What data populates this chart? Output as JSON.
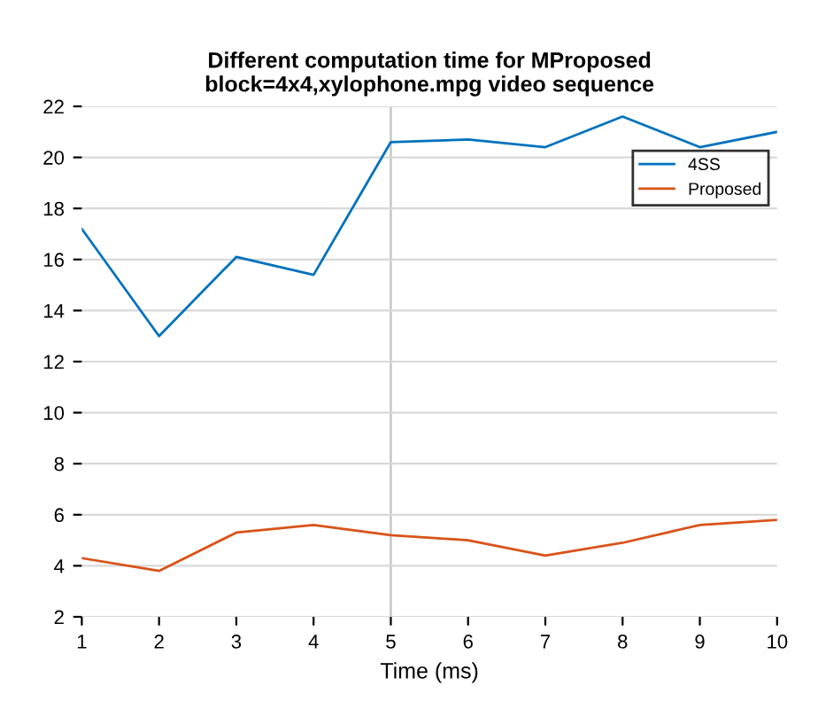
{
  "chart_data": {
    "type": "line",
    "title": "Different computation time for MProposed\nblock=4x4,xylophone.mpg video sequence",
    "xlabel": "Time (ms)",
    "x": [
      1,
      2,
      3,
      4,
      5,
      6,
      7,
      8,
      9,
      10
    ],
    "series": [
      {
        "name": "4SS",
        "color": "#0072bd",
        "values": [
          17.2,
          13.0,
          16.1,
          15.4,
          20.6,
          20.7,
          20.4,
          21.6,
          20.4,
          21.0
        ]
      },
      {
        "name": "Proposed",
        "color": "#d95319",
        "values": [
          4.3,
          3.8,
          5.3,
          5.6,
          5.2,
          5.0,
          4.4,
          4.9,
          5.6,
          5.8
        ]
      }
    ],
    "xlim": [
      1,
      10
    ],
    "xticks": [
      1,
      2,
      3,
      4,
      5,
      6,
      7,
      8,
      9,
      10
    ],
    "ylim": [
      2,
      22
    ],
    "yticks": [
      2,
      4,
      6,
      8,
      10,
      12,
      14,
      16,
      18,
      20,
      22
    ],
    "grid": "y",
    "legend": "top right",
    "ref_lines": [
      {
        "axis": "x",
        "value": 5,
        "color": "#c0c0c0"
      }
    ]
  }
}
